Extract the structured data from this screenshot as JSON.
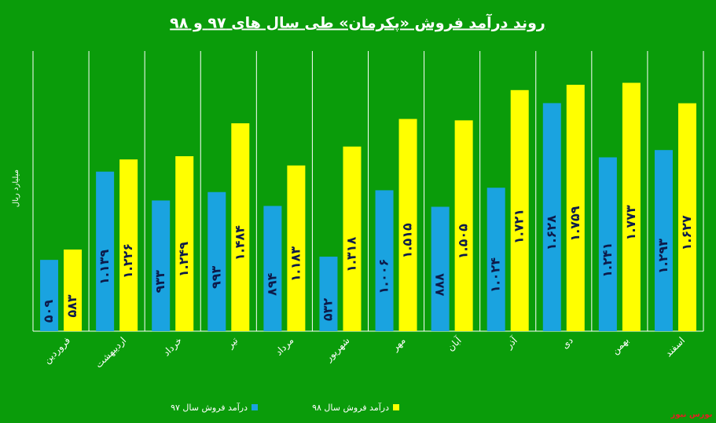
{
  "chart_data": {
    "type": "bar",
    "title": "روند درآمد فروش «پکرمان» طی سال های ۹۷ و ۹۸",
    "y_label": "میلیارد ریال",
    "source": "بورس نیوز",
    "categories": [
      "فروردین",
      "اردیبهشت",
      "خرداد",
      "تیر",
      "مرداد",
      "شهریور",
      "مهر",
      "آبان",
      "آذر",
      "دی",
      "بهمن",
      "اسفند"
    ],
    "series": [
      {
        "name": "درآمد فروش سال ۹۷",
        "color": "#1aa3e0",
        "values": [
          509,
          1139,
          933,
          993,
          894,
          532,
          1006,
          888,
          1024,
          1628,
          1241,
          1293
        ],
        "value_labels": [
          "۵۰۹",
          "۱.۱۳۹",
          "۹۳۳",
          "۹۹۳",
          "۸۹۴",
          "۵۳۲",
          "۱.۰۰۶",
          "۸۸۸",
          "۱.۰۲۴",
          "۱.۶۲۸",
          "۱.۲۴۱",
          "۱.۲۹۳"
        ]
      },
      {
        "name": "درآمد فروش سال ۹۸",
        "color": "#ffff00",
        "values": [
          583,
          1226,
          1249,
          1484,
          1183,
          1318,
          1515,
          1505,
          1721,
          1759,
          1773,
          1627
        ],
        "value_labels": [
          "۵۸۳",
          "۱.۲۲۶",
          "۱.۲۴۹",
          "۱.۴۸۴",
          "۱.۱۸۳",
          "۱.۳۱۸",
          "۱.۵۱۵",
          "۱.۵۰۵",
          "۱.۷۲۱",
          "۱.۷۵۹",
          "۱.۷۷۳",
          "۱.۶۲۷"
        ]
      }
    ],
    "ylim": [
      0,
      2000
    ],
    "grid": true
  }
}
